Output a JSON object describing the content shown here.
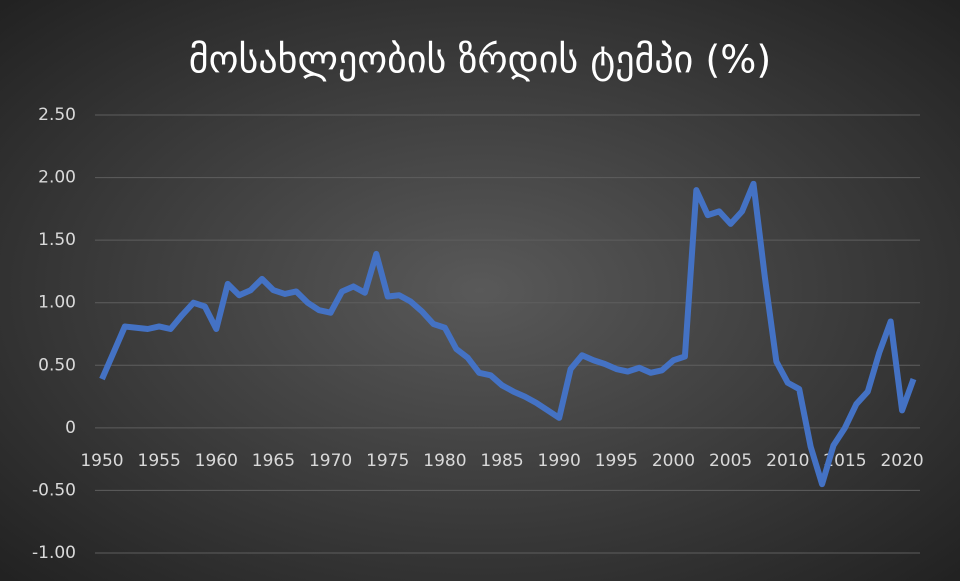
{
  "chart_data": {
    "type": "line",
    "title": "მოსახლეობის ზრდის ტემპი (%)",
    "x": [
      1950,
      1951,
      1952,
      1953,
      1954,
      1955,
      1956,
      1957,
      1958,
      1959,
      1960,
      1961,
      1962,
      1963,
      1964,
      1965,
      1966,
      1967,
      1968,
      1969,
      1970,
      1971,
      1972,
      1973,
      1974,
      1975,
      1976,
      1977,
      1978,
      1979,
      1980,
      1981,
      1982,
      1983,
      1984,
      1985,
      1986,
      1987,
      1988,
      1989,
      1990,
      1991,
      1992,
      1993,
      1994,
      1995,
      1996,
      1997,
      1998,
      1999,
      2000,
      2001,
      2002,
      2003,
      2004,
      2005,
      2006,
      2007,
      2008,
      2009,
      2010,
      2011,
      2012,
      2013,
      2014,
      2015,
      2016,
      2017,
      2018,
      2019,
      2020,
      2021
    ],
    "series": [
      {
        "color": "#4472c4",
        "values": [
          0.39,
          0.6,
          0.81,
          0.8,
          0.79,
          0.81,
          0.79,
          0.9,
          1.0,
          0.97,
          0.79,
          1.15,
          1.06,
          1.1,
          1.19,
          1.1,
          1.07,
          1.09,
          1.0,
          0.94,
          0.92,
          1.09,
          1.13,
          1.08,
          1.39,
          1.05,
          1.06,
          1.01,
          0.93,
          0.83,
          0.8,
          0.63,
          0.56,
          0.44,
          0.42,
          0.34,
          0.29,
          0.25,
          0.2,
          0.14,
          0.08,
          0.47,
          0.58,
          0.54,
          0.51,
          0.47,
          0.45,
          0.48,
          0.44,
          0.46,
          0.54,
          0.57,
          1.9,
          1.7,
          1.73,
          1.63,
          1.73,
          1.95,
          1.2,
          0.53,
          0.36,
          0.31,
          -0.15,
          -0.45,
          -0.14,
          0.0,
          0.19,
          0.29,
          0.6,
          0.85,
          0.14,
          0.39
        ]
      }
    ],
    "xlim": [
      1950,
      2021
    ],
    "xticks": [
      1950,
      1955,
      1960,
      1965,
      1970,
      1975,
      1980,
      1985,
      1990,
      1995,
      2000,
      2005,
      2010,
      2015,
      2020
    ],
    "ylim": [
      -1,
      2.5
    ],
    "yticks": [
      {
        "value": -1,
        "label": "-1.00"
      },
      {
        "value": -0.5,
        "label": "-0.50"
      },
      0,
      {
        "value": 0.5,
        "label": "0.50"
      },
      {
        "value": 1,
        "label": "1.00"
      },
      {
        "value": 1.5,
        "label": "1.50"
      },
      {
        "value": 2,
        "label": "2.00"
      },
      {
        "value": 2.5,
        "label": "2.50"
      }
    ],
    "grid": true
  }
}
